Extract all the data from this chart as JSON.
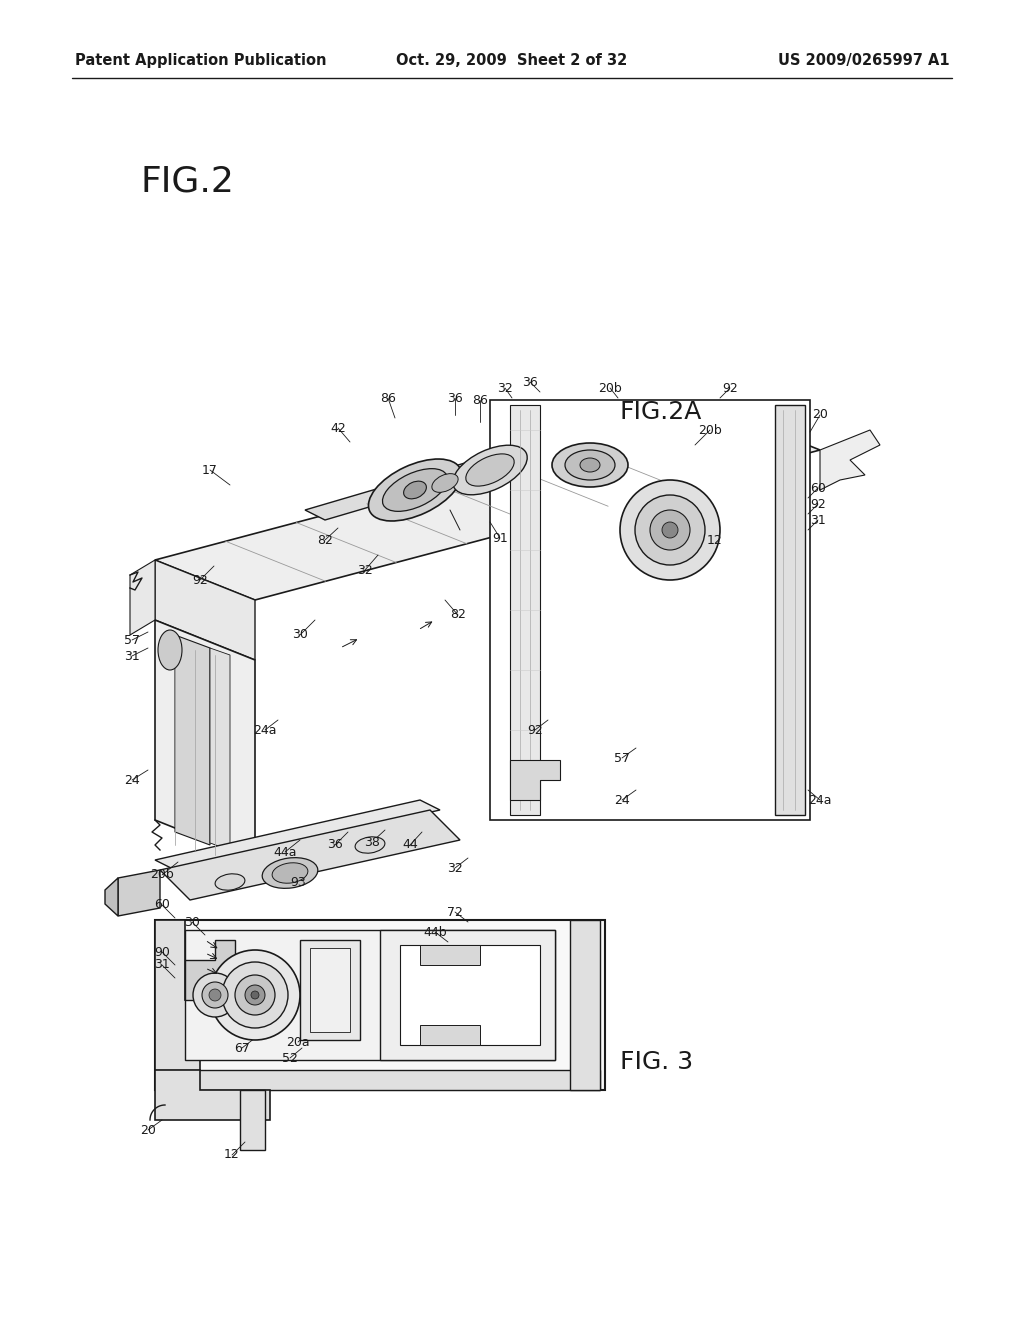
{
  "background_color": "#ffffff",
  "header_left": "Patent Application Publication",
  "header_center": "Oct. 29, 2009  Sheet 2 of 32",
  "header_right": "US 2009/0265997 A1",
  "header_fontsize": 10.5,
  "header_color": "#000000",
  "fig_width": 10.24,
  "fig_height": 13.2,
  "dpi": 100,
  "dark": "#1a1a1a",
  "gray": "#666666",
  "lightgray": "#cccccc",
  "verylightgray": "#eeeeee"
}
